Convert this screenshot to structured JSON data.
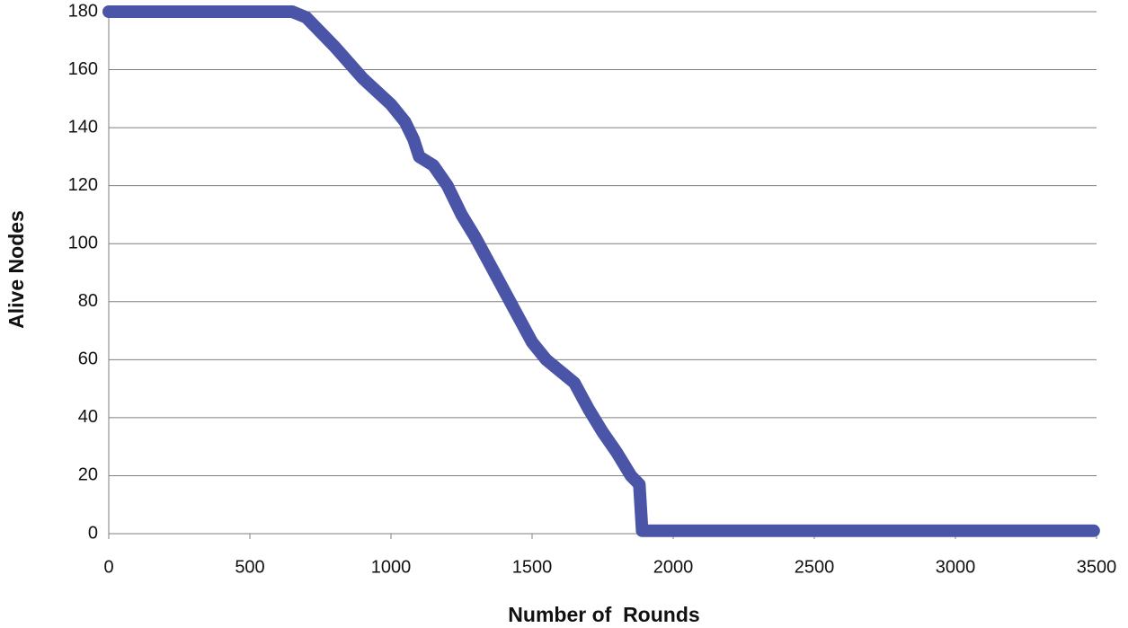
{
  "chart_data": {
    "type": "line",
    "x_label": "Number of  Rounds",
    "y_label": "Alive Nodes",
    "x": [
      0,
      100,
      200,
      300,
      400,
      500,
      600,
      650,
      700,
      800,
      900,
      1000,
      1050,
      1080,
      1100,
      1150,
      1200,
      1250,
      1300,
      1350,
      1400,
      1450,
      1500,
      1550,
      1600,
      1650,
      1700,
      1750,
      1800,
      1850,
      1880,
      1890,
      2000,
      2500,
      3000,
      3490
    ],
    "values": [
      180,
      180,
      180,
      180,
      180,
      180,
      180,
      180,
      178,
      168,
      157,
      148,
      142,
      136,
      130,
      127,
      120,
      110,
      102,
      93,
      84,
      75,
      66,
      60,
      56,
      52,
      43,
      35,
      28,
      20,
      17,
      1,
      1,
      1,
      1,
      1
    ],
    "color": "#4a55a8",
    "xlim": [
      0,
      3500
    ],
    "xticks": [
      0,
      500,
      1000,
      1500,
      2000,
      2500,
      3000,
      3500
    ],
    "ylim": [
      0,
      180
    ],
    "yticks": [
      0,
      20,
      40,
      60,
      80,
      100,
      120,
      140,
      160,
      180
    ],
    "grid": true
  }
}
